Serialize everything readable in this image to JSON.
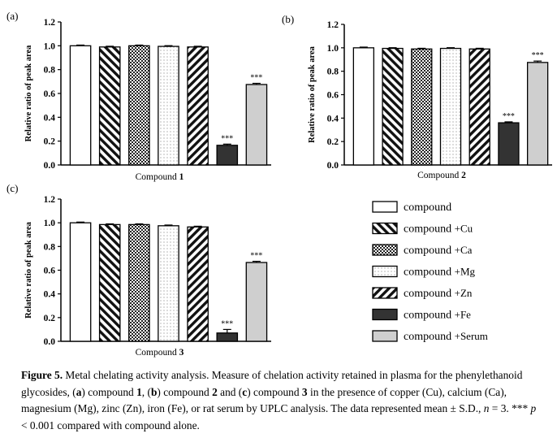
{
  "chart_data": [
    {
      "type": "bar",
      "panel_label": "(a)",
      "xlabel": "Compound",
      "xlabel_num": "1",
      "ylabel": "Relative ratio of peak area",
      "ylim": [
        0,
        1.2
      ],
      "yticks": [
        "0.0",
        "0.2",
        "0.4",
        "0.6",
        "0.8",
        "1.0",
        "1.2"
      ],
      "values": [
        1.0,
        0.99,
        1.0,
        0.995,
        0.99,
        0.165,
        0.675
      ],
      "errors": [
        0.006,
        0.006,
        0.006,
        0.006,
        0.006,
        0.01,
        0.01
      ],
      "significance": [
        "",
        "",
        "",
        "",
        "",
        "***",
        "***"
      ]
    },
    {
      "type": "bar",
      "panel_label": "(b)",
      "xlabel": "Compound",
      "xlabel_num": "2",
      "ylabel": "Relative ratio of peak area",
      "ylim": [
        0,
        1.2
      ],
      "yticks": [
        "0.0",
        "0.2",
        "0.4",
        "0.6",
        "0.8",
        "1.0",
        "1.2"
      ],
      "values": [
        1.0,
        0.995,
        0.99,
        0.995,
        0.99,
        0.36,
        0.875
      ],
      "errors": [
        0.006,
        0.006,
        0.006,
        0.006,
        0.006,
        0.008,
        0.012
      ],
      "significance": [
        "",
        "",
        "",
        "",
        "",
        "***",
        "***"
      ]
    },
    {
      "type": "bar",
      "panel_label": "(c)",
      "xlabel": "Compound",
      "xlabel_num": "3",
      "ylabel": "Relative ratio of peak area",
      "ylim": [
        0,
        1.2
      ],
      "yticks": [
        "0.0",
        "0.2",
        "0.4",
        "0.6",
        "0.8",
        "1.0",
        "1.2"
      ],
      "values": [
        1.0,
        0.985,
        0.985,
        0.975,
        0.965,
        0.07,
        0.665
      ],
      "errors": [
        0.006,
        0.006,
        0.006,
        0.006,
        0.006,
        0.03,
        0.01
      ],
      "significance": [
        "",
        "",
        "",
        "",
        "",
        "***",
        "***"
      ]
    }
  ],
  "legend": [
    {
      "name": "compound",
      "suffix": "",
      "pattern": "white"
    },
    {
      "name": "compound",
      "suffix": "+Cu",
      "pattern": "diag"
    },
    {
      "name": "compound",
      "suffix": "+Ca",
      "pattern": "check"
    },
    {
      "name": "compound",
      "suffix": "+Mg",
      "pattern": "dots"
    },
    {
      "name": "compound",
      "suffix": "+Zn",
      "pattern": "stripes"
    },
    {
      "name": "compound",
      "suffix": "+Fe",
      "pattern": "dark"
    },
    {
      "name": "compound",
      "suffix": "+Serum",
      "pattern": "light"
    }
  ],
  "colors": {
    "dark": "#333333",
    "light": "#cfcfcf",
    "white": "#ffffff"
  },
  "caption": {
    "label": "Figure 5.",
    "s1": " Metal chelating activity analysis. Measure of chelation activity retained in plasma for the phenylethanoid glycosides, (",
    "a": "a",
    "s2": ") compound ",
    "c1": "1",
    "s3": ", (",
    "b": "b",
    "s4": ") compound ",
    "c2": "2",
    "s5": " and (",
    "c": "c",
    "s6": ") compound ",
    "c3": "3",
    "s7": " in the presence of copper (Cu), calcium (Ca), magnesium (Mg), zinc (Zn), iron (Fe), or rat serum by UPLC analysis. The data represented mean ± S.D., ",
    "n_var": "n",
    "s8": " = 3. *** ",
    "p_var": "p",
    "s9": " < 0.001 compared with compound alone."
  }
}
